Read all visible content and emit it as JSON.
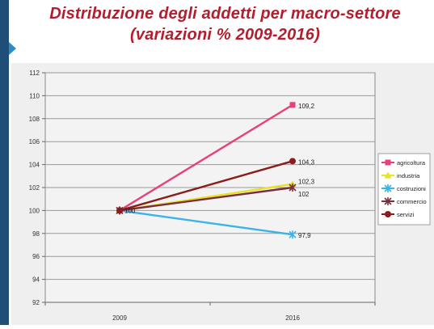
{
  "title": "Distribuzione degli addetti per macro-settore",
  "subtitle": "(variazioni % 2009-2016)",
  "chart_data": {
    "type": "line",
    "title": "Distribuzione degli addetti per macro-settore",
    "subtitle": "(variazioni % 2009-2016)",
    "xlabel": "",
    "ylabel": "",
    "x": [
      "2009",
      "2016"
    ],
    "ylim": [
      92,
      112
    ],
    "yticks": [
      92,
      94,
      96,
      98,
      100,
      102,
      104,
      106,
      108,
      110,
      112
    ],
    "ytick_labels": [
      "92",
      "94",
      "96",
      "98",
      "100",
      "102",
      "104",
      "106",
      "108",
      "110",
      "112"
    ],
    "grid": true,
    "legend": "right",
    "start_label": "100",
    "series": [
      {
        "name": "agricoltura",
        "values": [
          100,
          109.2
        ],
        "color": "#e6417a",
        "marker": "square",
        "end_label": "109,2"
      },
      {
        "name": "industria",
        "values": [
          100,
          102.3
        ],
        "color": "#e8e322",
        "marker": "triangle",
        "end_label": "102,3"
      },
      {
        "name": "costruzioni",
        "values": [
          100,
          97.9
        ],
        "color": "#3bb3e8",
        "marker": "x",
        "end_label": "97,9"
      },
      {
        "name": "commercio",
        "values": [
          100,
          102
        ],
        "color": "#7b2f3e",
        "marker": "x",
        "end_label": "102"
      },
      {
        "name": "servizi",
        "values": [
          100,
          104.3
        ],
        "color": "#8b1c1c",
        "marker": "circle",
        "end_label": "104,3"
      }
    ]
  }
}
